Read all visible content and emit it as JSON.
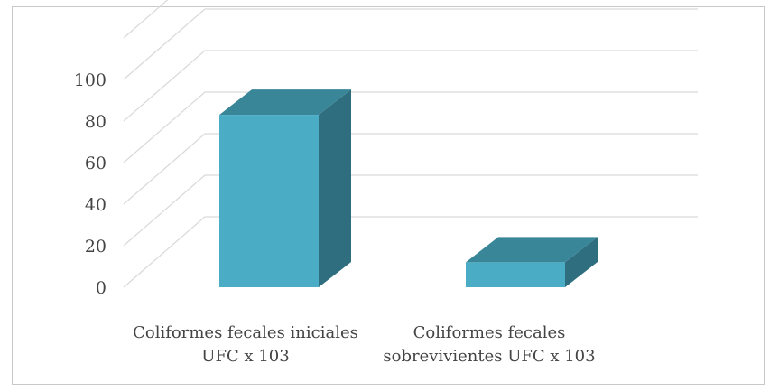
{
  "chart_data": {
    "type": "bar",
    "style": "3d-column",
    "categories": [
      [
        "Coliformes fecales iniciales",
        "UFC x 103"
      ],
      [
        "Coliformes fecales",
        "sobrevivientes UFC x 103"
      ]
    ],
    "values": [
      83,
      12
    ],
    "ylim": [
      0,
      100
    ],
    "yticks": [
      "0",
      "20",
      "40",
      "60",
      "80",
      "100"
    ],
    "grid": true,
    "legend": "none",
    "colors": {
      "bar_front": "#4bacc6",
      "bar_side": "#2f6e7e",
      "bar_top": "#3a8699",
      "gridline": "#d9d9d9"
    }
  }
}
